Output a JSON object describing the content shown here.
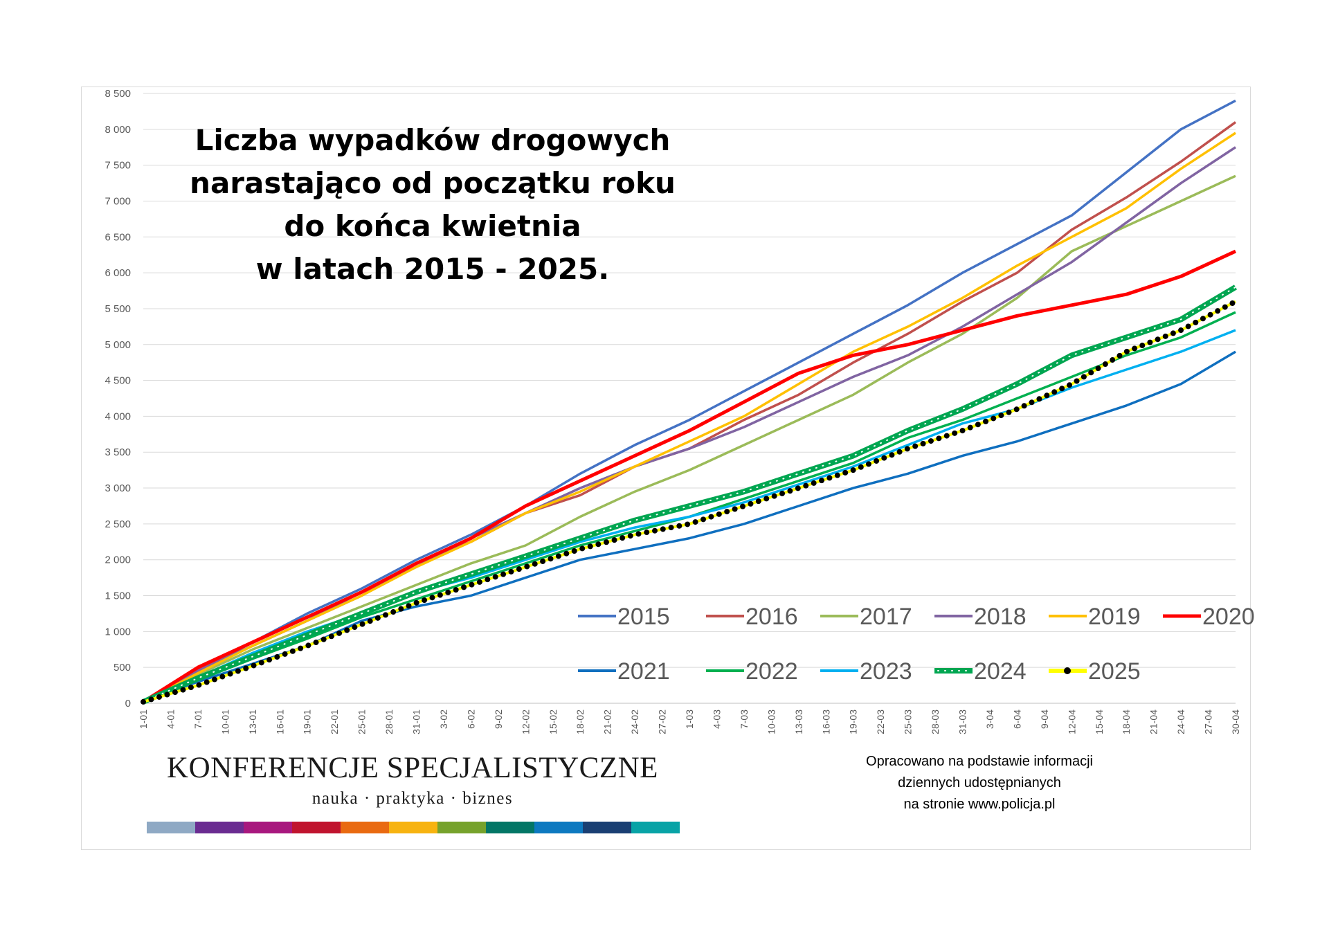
{
  "chart_data": {
    "type": "line",
    "title_lines": [
      "Liczba wypadków drogowych",
      "narastająco od początku roku",
      "do końca kwietnia",
      "w latach 2015 - 2025."
    ],
    "xlabel": "",
    "ylabel": "",
    "x_tick_labels": [
      "1-01",
      "4-01",
      "7-01",
      "10-01",
      "13-01",
      "16-01",
      "19-01",
      "22-01",
      "25-01",
      "28-01",
      "31-01",
      "3-02",
      "6-02",
      "9-02",
      "12-02",
      "15-02",
      "18-02",
      "21-02",
      "24-02",
      "27-02",
      "1-03",
      "4-03",
      "7-03",
      "10-03",
      "13-03",
      "16-03",
      "19-03",
      "22-03",
      "25-03",
      "28-03",
      "31-03",
      "3-04",
      "6-04",
      "9-04",
      "12-04",
      "15-04",
      "18-04",
      "21-04",
      "24-04",
      "27-04",
      "30-04"
    ],
    "y_ticks": [
      0,
      500,
      1000,
      1500,
      2000,
      2500,
      3000,
      3500,
      4000,
      4500,
      5000,
      5500,
      6000,
      6500,
      7000,
      7500,
      8000,
      8500
    ],
    "y_tick_labels": [
      "0",
      "500",
      "1 000",
      "1 500",
      "2 000",
      "2 500",
      "3 000",
      "3 500",
      "4 000",
      "4 500",
      "5 000",
      "5 500",
      "6 000",
      "6 500",
      "7 000",
      "7 500",
      "8 000",
      "8 500"
    ],
    "ylim": [
      0,
      8500
    ],
    "grid": true,
    "legend_position": "bottom-right",
    "series": [
      {
        "name": "2015",
        "color": "#4472C4",
        "style": "line",
        "values": [
          20,
          450,
          850,
          1250,
          1600,
          2000,
          2350,
          2750,
          3200,
          3600,
          3950,
          4350,
          4750,
          5150,
          5550,
          6000,
          6400,
          6800,
          7400,
          8000,
          8400
        ]
      },
      {
        "name": "2016",
        "color": "#C0504D",
        "style": "line",
        "values": [
          20,
          460,
          800,
          1150,
          1500,
          1950,
          2250,
          2650,
          2900,
          3300,
          3550,
          3950,
          4300,
          4750,
          5150,
          5600,
          6000,
          6600,
          7050,
          7550,
          8100
        ]
      },
      {
        "name": "2017",
        "color": "#9BBB59",
        "style": "line",
        "values": [
          20,
          400,
          750,
          1050,
          1350,
          1650,
          1950,
          2200,
          2600,
          2950,
          3250,
          3600,
          3950,
          4300,
          4750,
          5150,
          5650,
          6300,
          6650,
          7000,
          7350
        ]
      },
      {
        "name": "2018",
        "color": "#8064A2",
        "style": "line",
        "values": [
          20,
          450,
          800,
          1150,
          1550,
          1900,
          2300,
          2650,
          3000,
          3300,
          3550,
          3850,
          4200,
          4550,
          4850,
          5250,
          5700,
          6150,
          6700,
          7250,
          7750
        ]
      },
      {
        "name": "2019",
        "color": "#FFC000",
        "style": "line",
        "values": [
          20,
          420,
          800,
          1150,
          1500,
          1900,
          2250,
          2650,
          2950,
          3300,
          3650,
          4000,
          4450,
          4900,
          5250,
          5650,
          6100,
          6500,
          6900,
          7450,
          7950
        ]
      },
      {
        "name": "2020",
        "color": "#FF0000",
        "style": "thick-line",
        "values": [
          20,
          500,
          850,
          1200,
          1550,
          1950,
          2300,
          2750,
          3100,
          3450,
          3800,
          4200,
          4600,
          4850,
          5000,
          5200,
          5400,
          5550,
          5700,
          5950,
          6300
        ]
      },
      {
        "name": "2021",
        "color": "#0F6FBF",
        "style": "line",
        "values": [
          20,
          300,
          550,
          800,
          1150,
          1350,
          1500,
          1750,
          2000,
          2150,
          2300,
          2500,
          2750,
          3000,
          3200,
          3450,
          3650,
          3900,
          4150,
          4450,
          4900
        ]
      },
      {
        "name": "2022",
        "color": "#00B050",
        "style": "line",
        "values": [
          20,
          320,
          620,
          900,
          1200,
          1450,
          1700,
          1950,
          2200,
          2400,
          2600,
          2850,
          3100,
          3350,
          3700,
          3950,
          4250,
          4550,
          4850,
          5100,
          5450
        ]
      },
      {
        "name": "2023",
        "color": "#00B0F0",
        "style": "line",
        "values": [
          20,
          360,
          700,
          1000,
          1250,
          1550,
          1750,
          2000,
          2250,
          2450,
          2600,
          2800,
          3050,
          3300,
          3600,
          3900,
          4100,
          4400,
          4650,
          4900,
          5200
        ]
      },
      {
        "name": "2024",
        "color": "#00A651",
        "style": "dotted-band",
        "values": [
          20,
          350,
          650,
          950,
          1250,
          1550,
          1800,
          2050,
          2300,
          2550,
          2750,
          2950,
          3200,
          3450,
          3800,
          4100,
          4450,
          4850,
          5100,
          5350,
          5800
        ]
      },
      {
        "name": "2025",
        "color": "#000000",
        "highlight": "#FFFF00",
        "style": "dotted",
        "values": [
          20,
          250,
          520,
          800,
          1100,
          1400,
          1650,
          1900,
          2150,
          2350,
          2500,
          2750,
          3000,
          3250,
          3550,
          3800,
          4100,
          4450,
          4900,
          5200,
          5600
        ]
      }
    ]
  },
  "brand": {
    "name": "KONFERENCJE SPECJALISTYCZNE",
    "tagline": "nauka · praktyka · biznes",
    "stripe_colors": [
      "#8FA9C4",
      "#6A2C91",
      "#A8187E",
      "#C0142E",
      "#E96A11",
      "#F7B310",
      "#76A22C",
      "#037666",
      "#0D79C0",
      "#1A3F73",
      "#08A3A6"
    ]
  },
  "source_note_lines": [
    "Opracowano na podstawie informacji",
    "dziennych udostępnianych",
    "na stronie www.policja.pl"
  ]
}
